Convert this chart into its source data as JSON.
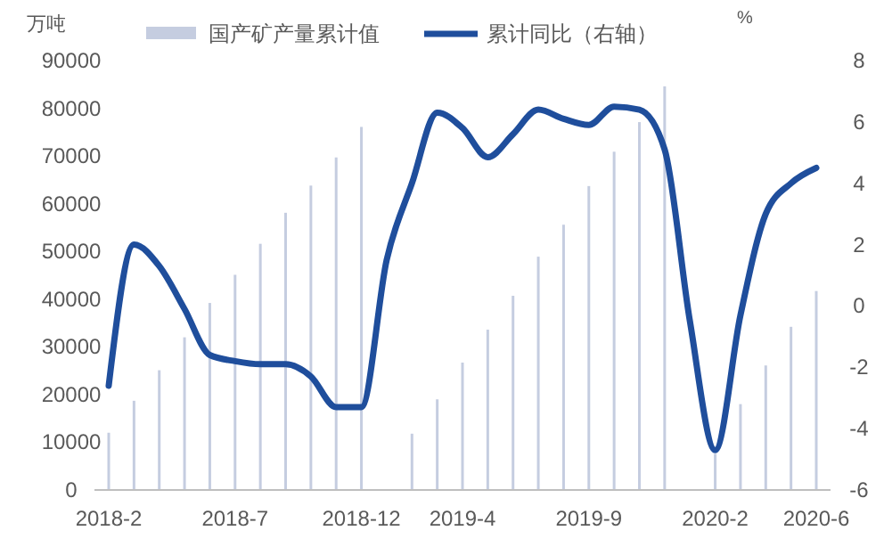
{
  "chart_data": {
    "type": "bar",
    "ylabel": "万吨",
    "y2label": "%",
    "categories": [
      "2018-2",
      null,
      null,
      null,
      null,
      "2018-7",
      null,
      null,
      null,
      null,
      "2018-12",
      null,
      null,
      null,
      "2019-4",
      null,
      null,
      null,
      null,
      "2019-9",
      null,
      null,
      null,
      null,
      "2020-2",
      null,
      null,
      null,
      "2020-6"
    ],
    "series": [
      {
        "name": "国产矿产量累计值",
        "color": "#c5cde0",
        "values": [
          12000,
          18700,
          25100,
          32000,
          39200,
          45100,
          51600,
          58100,
          63800,
          69700,
          76100,
          null,
          11800,
          19000,
          26700,
          33600,
          40700,
          48900,
          55600,
          63700,
          70900,
          77100,
          84600,
          null,
          7600,
          18000,
          26100,
          34200,
          41700
        ]
      },
      {
        "name": "累计同比（右轴）",
        "type": "line",
        "axis": "y2",
        "color": "#1f4e9c",
        "values": [
          -2.6,
          2.0,
          1.3,
          -0.1,
          -1.6,
          -1.8,
          -1.9,
          -1.9,
          -2.3,
          -3.3,
          -3.3,
          1.5,
          4.0,
          6.3,
          5.8,
          4.85,
          5.6,
          6.4,
          6.1,
          5.9,
          6.5,
          6.4,
          5.1,
          -0.5,
          -4.7,
          -0.3,
          3.0,
          4.0,
          4.5
        ]
      }
    ],
    "ylim": [
      0,
      90000
    ],
    "yticks": [
      0,
      10000,
      20000,
      30000,
      40000,
      50000,
      60000,
      70000,
      80000,
      90000
    ],
    "y2lim": [
      -6,
      8
    ],
    "y2ticks": [
      -6,
      -4,
      -2,
      0,
      2,
      4,
      6,
      8
    ],
    "legend": "top",
    "grid": false,
    "marker": "none",
    "line_style": "solid"
  }
}
